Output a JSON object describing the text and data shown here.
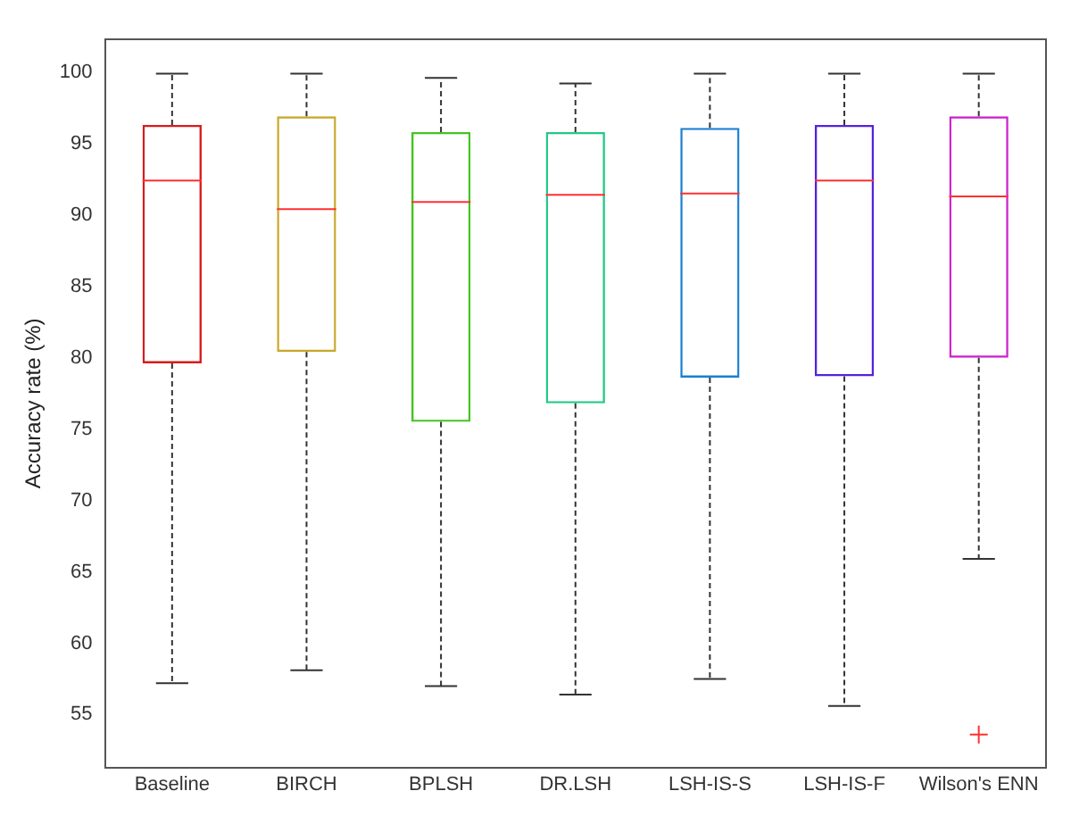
{
  "chart_data": {
    "type": "box",
    "ylabel": "Accuracy rate (%)",
    "categories": [
      "Baseline",
      "BIRCH",
      "BPLSH",
      "DR.LSH",
      "LSH-IS-S",
      "LSH-IS-F",
      "Wilson's ENN"
    ],
    "colors": [
      "#d81b1b",
      "#c8a82a",
      "#44c422",
      "#22c888",
      "#1a7fd4",
      "#5522dd",
      "#cc22cc"
    ],
    "boxes": [
      {
        "low": 57.2,
        "q1": 79.6,
        "median": 92.4,
        "q3": 96.3,
        "high": 99.9
      },
      {
        "low": 58.1,
        "q1": 80.4,
        "median": 90.4,
        "q3": 96.9,
        "high": 99.9
      },
      {
        "low": 57.0,
        "q1": 75.5,
        "median": 90.9,
        "q3": 95.8,
        "high": 99.6
      },
      {
        "low": 56.4,
        "q1": 76.8,
        "median": 91.4,
        "q3": 95.8,
        "high": 99.2
      },
      {
        "low": 57.5,
        "q1": 78.6,
        "median": 91.5,
        "q3": 96.1,
        "high": 99.9
      },
      {
        "low": 55.6,
        "q1": 78.7,
        "median": 92.4,
        "q3": 96.3,
        "high": 99.9
      },
      {
        "low": 65.9,
        "q1": 80.0,
        "median": 91.3,
        "q3": 96.9,
        "high": 99.9,
        "outliers": [
          53.6
        ]
      }
    ],
    "ylim": [
      51.3,
      102.3
    ],
    "yticks": [
      55,
      60,
      65,
      70,
      75,
      80,
      85,
      90,
      95,
      100
    ],
    "grid": false,
    "legend": false
  }
}
